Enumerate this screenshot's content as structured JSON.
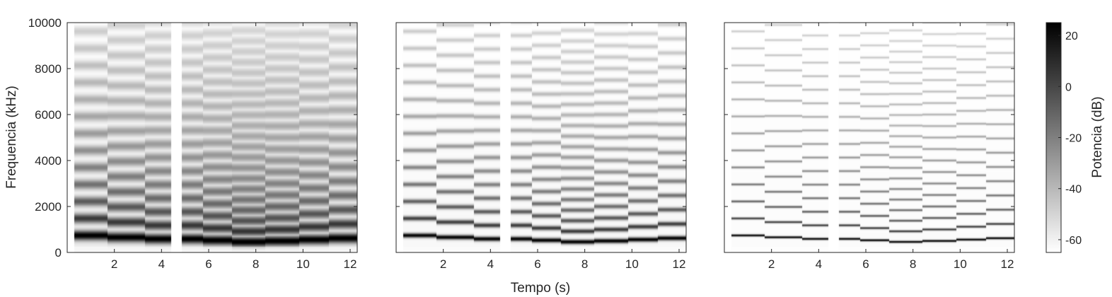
{
  "chart_data": {
    "type": "heatmap",
    "xlabel": "Tempo (s)",
    "ylabel": "Frequencia (kHz)",
    "colorbar_label": "Potencia (dB)",
    "colormap": "gray-reversed",
    "xlim": [
      0,
      12.3
    ],
    "ylim": [
      0,
      10000
    ],
    "x_ticks": [
      "2",
      "4",
      "6",
      "8",
      "10",
      "12"
    ],
    "x_tick_values": [
      2,
      4,
      6,
      8,
      10,
      12
    ],
    "y_ticks": [
      "0",
      "2000",
      "4000",
      "6000",
      "8000",
      "10000"
    ],
    "y_tick_values": [
      0,
      2000,
      4000,
      6000,
      8000,
      10000
    ],
    "colorbar": {
      "range": [
        -65,
        25
      ],
      "ticks": [
        "20",
        "0",
        "-20",
        "-40",
        "-60"
      ],
      "tick_values": [
        20,
        0,
        -20,
        -40,
        -60
      ],
      "colors": [
        "#ffffff",
        "#000000"
      ]
    },
    "notes_f0": [
      {
        "t_start": 0.3,
        "t_end": 1.7,
        "f0": 740
      },
      {
        "t_start": 1.7,
        "t_end": 3.3,
        "f0": 660
      },
      {
        "t_start": 3.3,
        "t_end": 4.4,
        "f0": 590
      },
      {
        "t_start": 4.85,
        "t_end": 5.75,
        "f0": 590
      },
      {
        "t_start": 5.75,
        "t_end": 7.0,
        "f0": 530
      },
      {
        "t_start": 7.0,
        "t_end": 8.4,
        "f0": 460
      },
      {
        "t_start": 8.4,
        "t_end": 9.85,
        "f0": 500
      },
      {
        "t_start": 9.85,
        "t_end": 11.1,
        "f0": 560
      },
      {
        "t_start": 11.1,
        "t_end": 12.3,
        "f0": 620
      }
    ],
    "gaps": [
      [
        4.4,
        4.85
      ]
    ],
    "panels": [
      {
        "name": "panel-1",
        "harmonic_width": 150,
        "floor": 0.06
      },
      {
        "name": "panel-2",
        "harmonic_width": 70,
        "floor": 0.03
      },
      {
        "name": "panel-3",
        "harmonic_width": 35,
        "floor": 0.015
      }
    ]
  }
}
